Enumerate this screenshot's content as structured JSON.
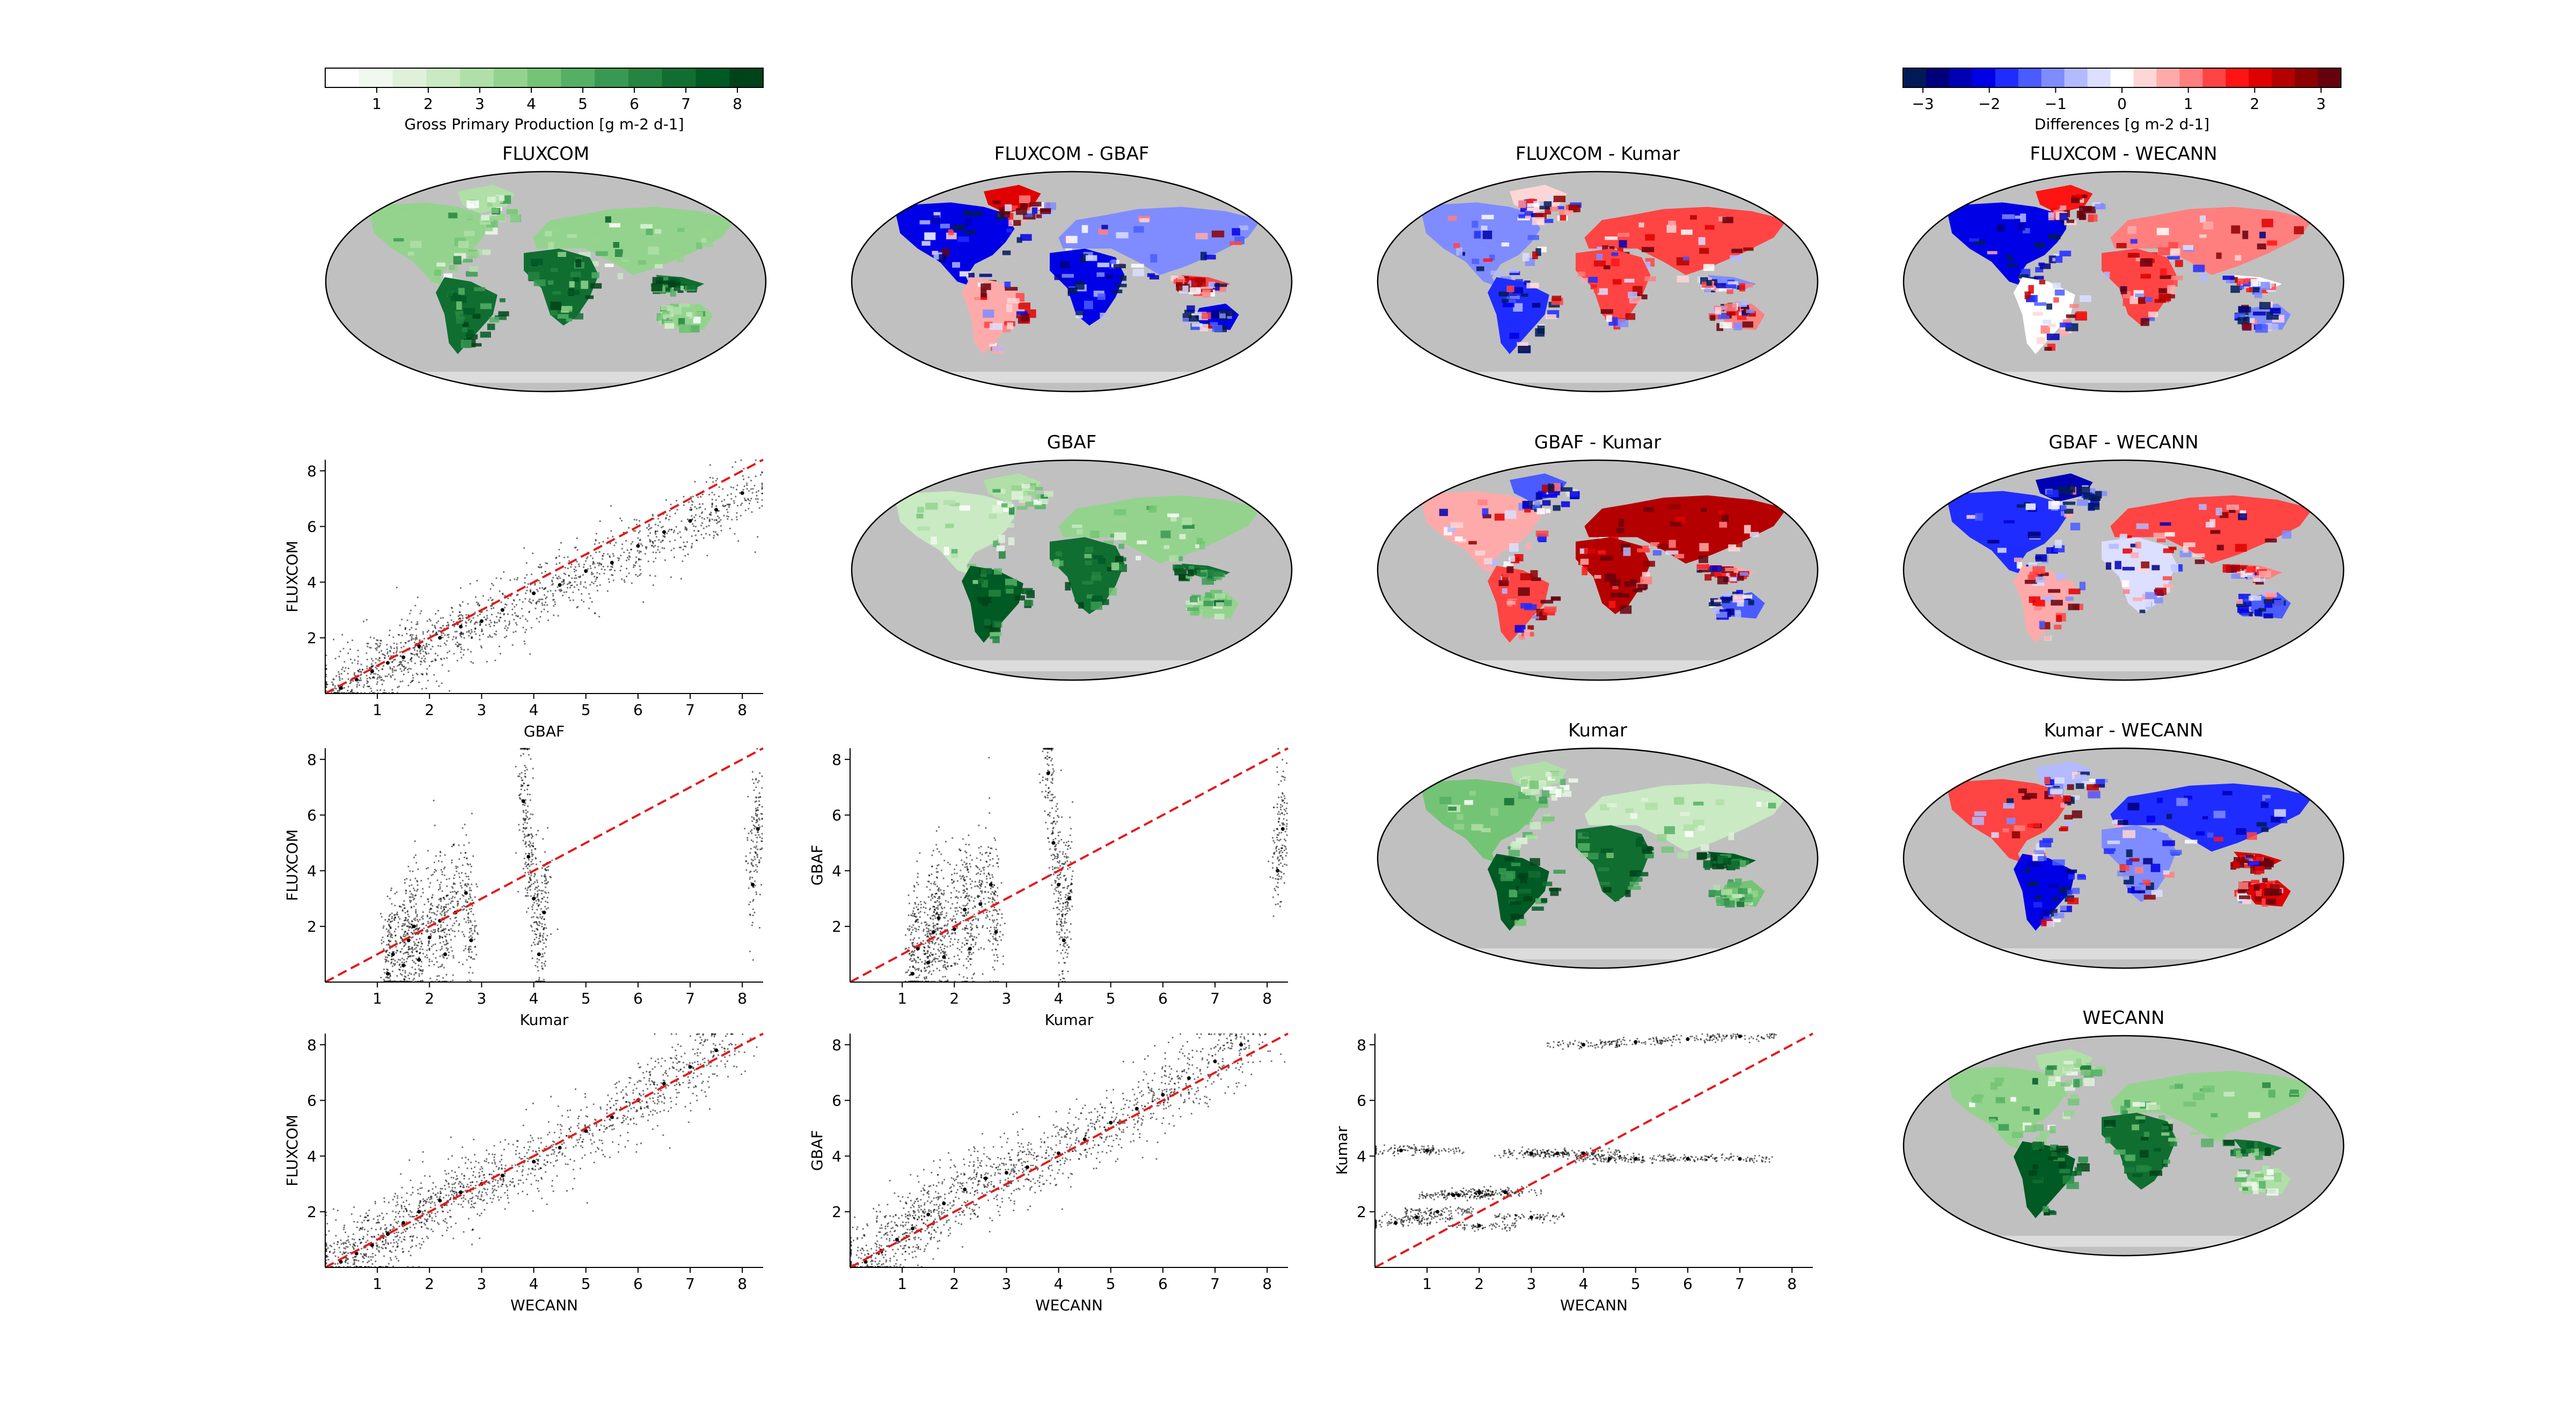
{
  "figure": {
    "colorbars": {
      "gpp": {
        "label": "Gross Primary Production [g m-2 d-1]",
        "range": [
          0,
          8.5
        ],
        "ticks": [
          "1",
          "2",
          "3",
          "4",
          "5",
          "6",
          "7",
          "8"
        ],
        "colors": [
          "#ffffff",
          "#f0f9ed",
          "#dff2d9",
          "#c9eac2",
          "#b0dfa8",
          "#94d38d",
          "#74c476",
          "#54b065",
          "#389a52",
          "#23853f",
          "#106e31",
          "#005a24",
          "#004318"
        ]
      },
      "diff": {
        "label": "Differences [g m-2 d-1]",
        "range": [
          -3.3,
          3.3
        ],
        "ticks": [
          "−3",
          "−2",
          "−1",
          "0",
          "1",
          "2",
          "3"
        ],
        "colors": [
          "#001a57",
          "#00007d",
          "#0000b4",
          "#0000e6",
          "#1f2cff",
          "#4a5cff",
          "#7f8cff",
          "#b3baff",
          "#dcdfff",
          "#ffffff",
          "#ffd6d6",
          "#ffaaaa",
          "#ff7f7f",
          "#ff4444",
          "#ff1414",
          "#e00000",
          "#b40000",
          "#8c0000",
          "#67000d"
        ]
      }
    },
    "maps": [
      {
        "id": "fluxcom",
        "title": "FLUXCOM",
        "type": "gpp"
      },
      {
        "id": "fluxcom-gbaf",
        "title": "FLUXCOM - GBAF",
        "type": "diff"
      },
      {
        "id": "fluxcom-kumar",
        "title": "FLUXCOM - Kumar",
        "type": "diff"
      },
      {
        "id": "fluxcom-wecann",
        "title": "FLUXCOM - WECANN",
        "type": "diff"
      },
      {
        "id": "gbaf",
        "title": "GBAF",
        "type": "gpp"
      },
      {
        "id": "gbaf-kumar",
        "title": "GBAF - Kumar",
        "type": "diff"
      },
      {
        "id": "gbaf-wecann",
        "title": "GBAF - WECANN",
        "type": "diff"
      },
      {
        "id": "kumar",
        "title": "Kumar",
        "type": "gpp"
      },
      {
        "id": "kumar-wecann",
        "title": "Kumar - WECANN",
        "type": "diff"
      },
      {
        "id": "wecann",
        "title": "WECANN",
        "type": "gpp"
      }
    ],
    "scatters": [
      {
        "id": "gbaf-vs-fluxcom",
        "xlabel": "GBAF",
        "ylabel": "FLUXCOM"
      },
      {
        "id": "kumar-vs-fluxcom",
        "xlabel": "Kumar",
        "ylabel": "FLUXCOM"
      },
      {
        "id": "kumar-vs-gbaf",
        "xlabel": "Kumar",
        "ylabel": "GBAF"
      },
      {
        "id": "wecann-vs-fluxcom",
        "xlabel": "WECANN",
        "ylabel": "FLUXCOM"
      },
      {
        "id": "wecann-vs-gbaf",
        "xlabel": "WECANN",
        "ylabel": "GBAF"
      },
      {
        "id": "wecann-vs-kumar",
        "xlabel": "WECANN",
        "ylabel": "Kumar"
      }
    ]
  },
  "chart_data": {
    "type": "scatter",
    "xlim": [
      0,
      8.4
    ],
    "ylim": [
      0,
      8.4
    ],
    "xticks": [
      "1",
      "2",
      "3",
      "4",
      "5",
      "6",
      "7",
      "8"
    ],
    "yticks": [
      "2",
      "4",
      "6",
      "8"
    ],
    "reference_line": "1:1 (red dashed)",
    "series": [
      {
        "xlabel": "GBAF",
        "ylabel": "FLUXCOM",
        "x": [
          0.3,
          0.6,
          0.9,
          1.2,
          1.5,
          1.8,
          2.2,
          2.6,
          3.0,
          3.4,
          4.0,
          4.5,
          5.0,
          5.5,
          6.0,
          6.5,
          7.0,
          7.5,
          8.0
        ],
        "y": [
          0.2,
          0.5,
          0.8,
          1.1,
          1.3,
          1.7,
          2.0,
          2.4,
          2.6,
          3.0,
          3.6,
          3.9,
          4.4,
          4.7,
          5.3,
          5.8,
          6.2,
          6.6,
          7.2
        ]
      },
      {
        "xlabel": "Kumar",
        "ylabel": "FLUXCOM",
        "x": [
          1.2,
          1.3,
          1.5,
          1.6,
          1.7,
          1.8,
          2.0,
          2.2,
          2.3,
          2.5,
          2.7,
          2.8,
          3.8,
          3.9,
          4.0,
          4.1,
          4.2,
          8.2,
          8.3
        ],
        "y": [
          0.3,
          1.0,
          0.6,
          1.5,
          2.0,
          0.8,
          1.6,
          2.2,
          1.0,
          2.5,
          3.2,
          1.5,
          6.5,
          4.5,
          3.0,
          1.0,
          2.5,
          3.5,
          5.5
        ]
      },
      {
        "xlabel": "Kumar",
        "ylabel": "GBAF",
        "x": [
          1.2,
          1.3,
          1.5,
          1.6,
          1.7,
          1.8,
          2.0,
          2.2,
          2.3,
          2.5,
          2.7,
          2.8,
          3.8,
          3.9,
          4.0,
          4.1,
          4.2,
          8.2,
          8.3
        ],
        "y": [
          0.3,
          1.2,
          0.7,
          1.8,
          2.3,
          0.9,
          1.9,
          2.6,
          1.2,
          2.8,
          3.5,
          1.8,
          7.5,
          5.0,
          3.5,
          1.5,
          3.0,
          4.0,
          5.5
        ]
      },
      {
        "xlabel": "WECANN",
        "ylabel": "FLUXCOM",
        "x": [
          0.3,
          0.6,
          0.9,
          1.2,
          1.5,
          1.8,
          2.2,
          2.6,
          3.0,
          3.4,
          4.0,
          4.5,
          5.0,
          5.5,
          6.0,
          6.5,
          7.0,
          7.5
        ],
        "y": [
          0.2,
          0.5,
          0.8,
          1.2,
          1.6,
          2.0,
          2.4,
          2.7,
          3.0,
          3.3,
          3.8,
          4.3,
          4.9,
          5.4,
          6.0,
          6.6,
          7.2,
          7.8
        ]
      },
      {
        "xlabel": "WECANN",
        "ylabel": "GBAF",
        "x": [
          0.3,
          0.6,
          0.9,
          1.2,
          1.5,
          1.8,
          2.2,
          2.6,
          3.0,
          3.4,
          4.0,
          4.5,
          5.0,
          5.5,
          6.0,
          6.5,
          7.0,
          7.5
        ],
        "y": [
          0.2,
          0.6,
          1.0,
          1.4,
          1.9,
          2.3,
          2.8,
          3.2,
          3.4,
          3.6,
          4.1,
          4.6,
          5.2,
          5.7,
          6.2,
          6.8,
          7.4,
          8.0
        ]
      },
      {
        "xlabel": "WECANN",
        "ylabel": "Kumar",
        "x": [
          0.4,
          0.8,
          1.2,
          1.6,
          2.0,
          2.5,
          3.0,
          3.5,
          4.0,
          4.5,
          5.0,
          6.0,
          7.0,
          0.5,
          1.0,
          1.5,
          2.0,
          3.0,
          4.0,
          5.0,
          6.0,
          7.0
        ],
        "y": [
          1.6,
          1.8,
          2.0,
          2.6,
          2.7,
          2.7,
          4.1,
          4.1,
          4.1,
          3.9,
          3.9,
          3.9,
          3.9,
          4.2,
          4.2,
          2.6,
          1.5,
          1.8,
          8.0,
          8.1,
          8.2,
          8.3
        ]
      }
    ]
  }
}
